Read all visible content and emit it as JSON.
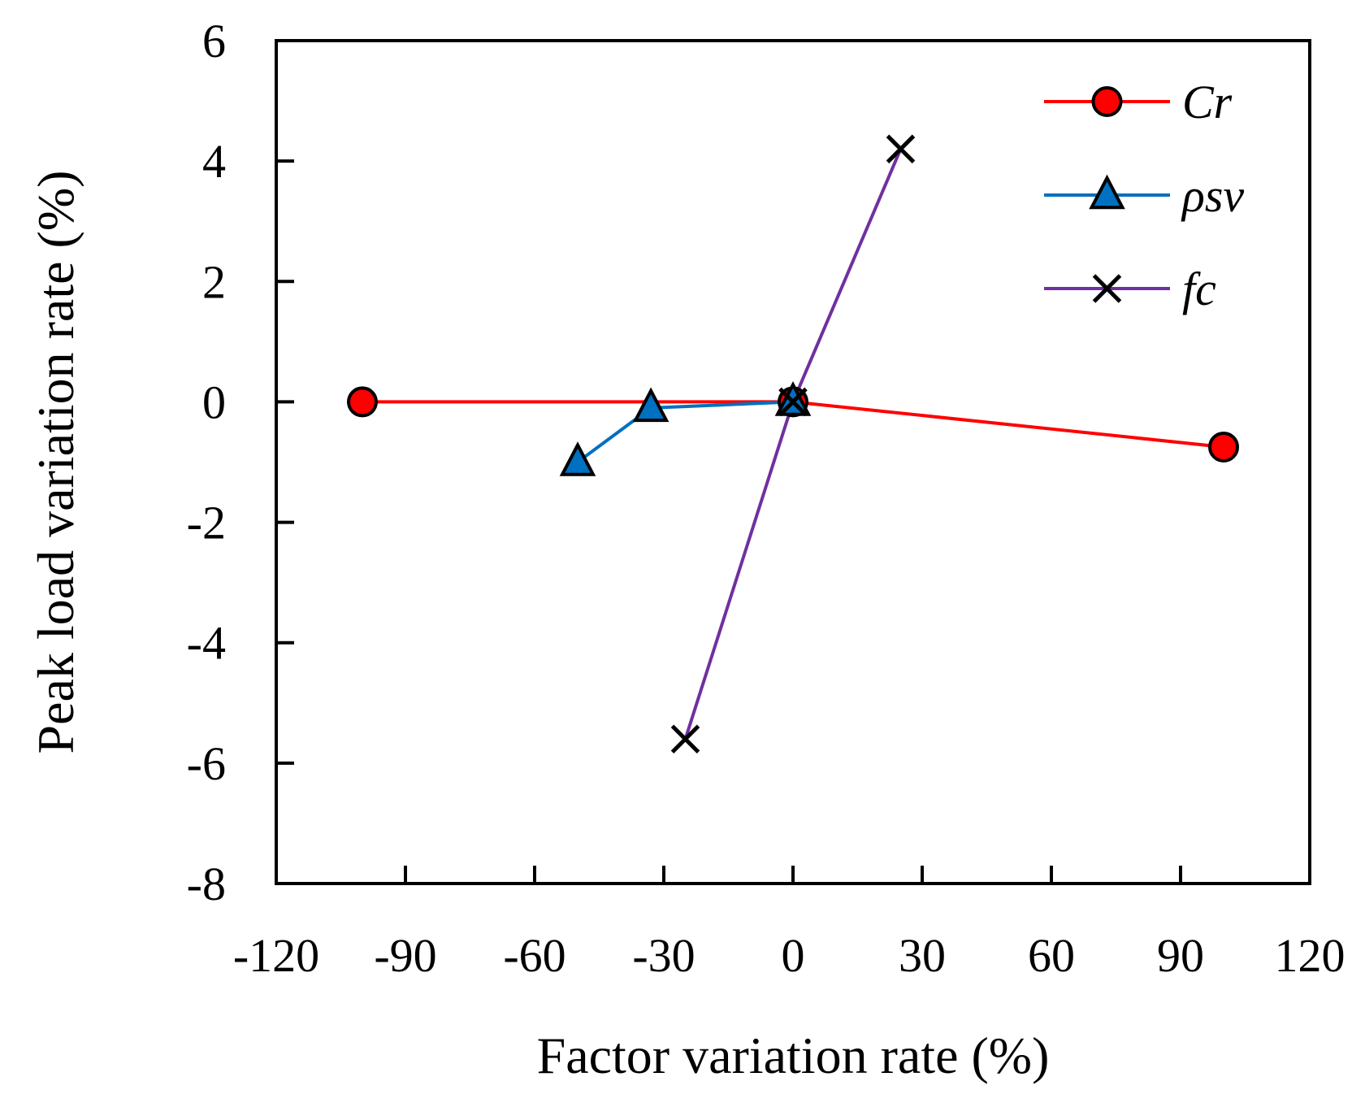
{
  "chart_data": {
    "type": "line",
    "title": "",
    "xlabel": "Factor variation rate (%)",
    "ylabel": "Peak load variation rate (%)",
    "xlim": [
      -120,
      120
    ],
    "ylim": [
      -8,
      6
    ],
    "xticks": [
      -120,
      -90,
      -60,
      -30,
      0,
      30,
      60,
      90,
      120
    ],
    "yticks": [
      -8,
      -6,
      -4,
      -2,
      0,
      2,
      4,
      6
    ],
    "xtick_labels": [
      "-120",
      "-90",
      "-60",
      "-30",
      "0",
      "30",
      "60",
      "90",
      "120"
    ],
    "ytick_labels": [
      "-8",
      "-6",
      "-4",
      "-2",
      "0",
      "2",
      "4",
      "6"
    ],
    "grid": false,
    "legend_position": "top-right",
    "series": [
      {
        "name": "Cr",
        "color": "#ff0000",
        "marker": "circle",
        "marker_fill": "#ff0000",
        "x": [
          -100,
          0,
          100
        ],
        "y": [
          0.0,
          0.0,
          -0.75
        ]
      },
      {
        "name": "ρsv",
        "color": "#0070c0",
        "marker": "triangle",
        "marker_fill": "#0070c0",
        "x": [
          -50,
          -33,
          0
        ],
        "y": [
          -1.0,
          -0.1,
          0.0
        ]
      },
      {
        "name": "fc",
        "color": "#7030a0",
        "marker": "x",
        "marker_fill": "#000000",
        "x": [
          -25,
          0,
          25
        ],
        "y": [
          -5.6,
          0.0,
          4.2
        ]
      }
    ]
  }
}
